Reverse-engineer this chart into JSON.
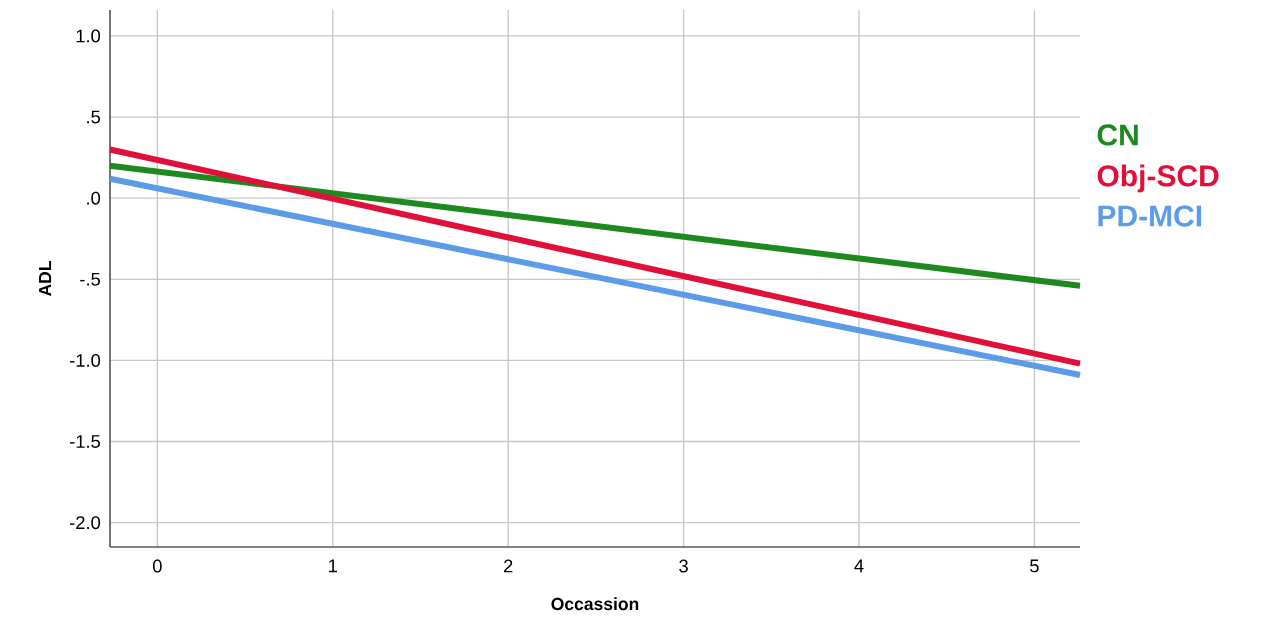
{
  "chart_data": {
    "type": "line",
    "xlabel": "Occassion",
    "ylabel": "ADL",
    "x": [
      -0.27,
      5.26
    ],
    "series": [
      {
        "name": "CN",
        "color": "#1e8a1e",
        "values": [
          0.2,
          -0.54
        ]
      },
      {
        "name": "Obj-SCD",
        "color": "#e0103a",
        "values": [
          0.3,
          -1.02
        ]
      },
      {
        "name": "PD-MCI",
        "color": "#5b9be8",
        "values": [
          0.12,
          -1.09
        ]
      }
    ],
    "xlim": [
      -0.27,
      5.26
    ],
    "ylim": [
      -2.15,
      1.16
    ],
    "xticks": [
      0,
      1,
      2,
      3,
      4,
      5
    ],
    "yticks": [
      {
        "value": -2.0,
        "label": "-2.0"
      },
      {
        "value": -1.5,
        "label": "-1.5"
      },
      {
        "value": -1.0,
        "label": "-1.0"
      },
      {
        "value": -0.5,
        "label": "-.5"
      },
      {
        "value": 0.0,
        "label": ".0"
      },
      {
        "value": 0.5,
        "label": ".5"
      },
      {
        "value": 1.0,
        "label": "1.0"
      }
    ],
    "grid": true,
    "legend": "right",
    "marker": "none",
    "line_style": "solid"
  }
}
